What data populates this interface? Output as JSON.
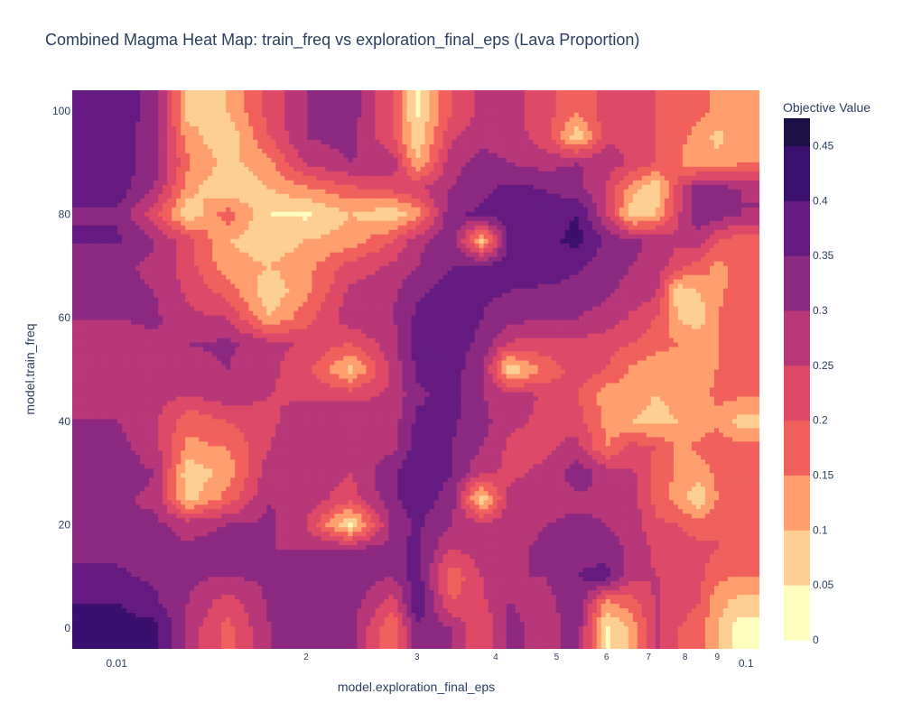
{
  "chart_data": {
    "type": "heatmap",
    "subtype": "contour",
    "title": "Combined Magma Heat Map: train_freq vs exploration_final_eps (Lava Proportion)",
    "xlabel": "model.exploration_final_eps",
    "ylabel": "model.train_freq",
    "x_scale": "log",
    "xlim": [
      0.0085,
      0.105
    ],
    "ylim": [
      -4,
      104
    ],
    "x_ticks": [
      {
        "value": 0.01,
        "label": "0.01",
        "major": true
      },
      {
        "value": 0.02,
        "label": "2",
        "major": false
      },
      {
        "value": 0.03,
        "label": "3",
        "major": false
      },
      {
        "value": 0.04,
        "label": "4",
        "major": false
      },
      {
        "value": 0.05,
        "label": "5",
        "major": false
      },
      {
        "value": 0.06,
        "label": "6",
        "major": false
      },
      {
        "value": 0.07,
        "label": "7",
        "major": false
      },
      {
        "value": 0.08,
        "label": "8",
        "major": false
      },
      {
        "value": 0.09,
        "label": "9",
        "major": false
      },
      {
        "value": 0.1,
        "label": "0.1",
        "major": true
      }
    ],
    "y_ticks": [
      {
        "value": 0,
        "label": "0"
      },
      {
        "value": 20,
        "label": "20"
      },
      {
        "value": 40,
        "label": "40"
      },
      {
        "value": 60,
        "label": "60"
      },
      {
        "value": 80,
        "label": "80"
      },
      {
        "value": 100,
        "label": "100"
      }
    ],
    "colorbar": {
      "title": "Objective Value",
      "colorscale": "Magma (reversed)",
      "range": [
        0,
        0.475
      ],
      "levels": [
        0,
        0.05,
        0.1,
        0.15,
        0.2,
        0.25,
        0.3,
        0.35,
        0.4,
        0.45
      ],
      "tick_labels": [
        "0",
        "0.05",
        "0.1",
        "0.15",
        "0.2",
        "0.25",
        "0.3",
        "0.35",
        "0.4",
        "0.45"
      ],
      "band_colors": [
        "#fcfdbf",
        "#fecf92",
        "#fe9f6d",
        "#f1605d",
        "#de4968",
        "#b73779",
        "#8c2981",
        "#641a80",
        "#3b0f70",
        "#1c1044",
        "#000004"
      ]
    },
    "z_grid": {
      "x": [
        0.01,
        0.0115,
        0.013,
        0.015,
        0.0175,
        0.02,
        0.0235,
        0.0275,
        0.03,
        0.034,
        0.038,
        0.042,
        0.048,
        0.054,
        0.06,
        0.066,
        0.072,
        0.078,
        0.084,
        0.09,
        0.098
      ],
      "y": [
        0,
        5,
        10,
        15,
        20,
        25,
        30,
        35,
        40,
        45,
        50,
        55,
        60,
        65,
        70,
        75,
        80,
        85,
        90,
        95,
        100
      ],
      "z": [
        [
          0.42,
          0.42,
          0.28,
          0.18,
          0.3,
          0.35,
          0.32,
          0.15,
          0.34,
          0.3,
          0.2,
          0.32,
          0.27,
          0.33,
          0.03,
          0.12,
          0.26,
          0.2,
          0.18,
          0.1,
          0.02
        ],
        [
          0.4,
          0.36,
          0.3,
          0.22,
          0.31,
          0.34,
          0.33,
          0.22,
          0.4,
          0.2,
          0.24,
          0.3,
          0.28,
          0.34,
          0.14,
          0.18,
          0.26,
          0.22,
          0.2,
          0.12,
          0.08
        ],
        [
          0.36,
          0.34,
          0.31,
          0.3,
          0.31,
          0.33,
          0.34,
          0.3,
          0.38,
          0.16,
          0.25,
          0.3,
          0.3,
          0.35,
          0.38,
          0.26,
          0.25,
          0.24,
          0.22,
          0.16,
          0.15
        ],
        [
          0.34,
          0.32,
          0.31,
          0.33,
          0.3,
          0.3,
          0.32,
          0.32,
          0.37,
          0.24,
          0.28,
          0.29,
          0.31,
          0.33,
          0.32,
          0.29,
          0.24,
          0.24,
          0.22,
          0.2,
          0.2
        ],
        [
          0.3,
          0.31,
          0.28,
          0.3,
          0.31,
          0.25,
          0.04,
          0.32,
          0.36,
          0.3,
          0.27,
          0.28,
          0.3,
          0.31,
          0.3,
          0.28,
          0.21,
          0.2,
          0.17,
          0.2,
          0.19
        ],
        [
          0.31,
          0.29,
          0.08,
          0.17,
          0.3,
          0.28,
          0.22,
          0.34,
          0.38,
          0.33,
          0.06,
          0.26,
          0.28,
          0.29,
          0.29,
          0.27,
          0.18,
          0.13,
          0.06,
          0.15,
          0.2
        ],
        [
          0.33,
          0.3,
          0.06,
          0.12,
          0.28,
          0.3,
          0.25,
          0.34,
          0.4,
          0.35,
          0.26,
          0.24,
          0.26,
          0.33,
          0.28,
          0.26,
          0.18,
          0.14,
          0.12,
          0.16,
          0.19
        ],
        [
          0.32,
          0.27,
          0.14,
          0.15,
          0.25,
          0.3,
          0.3,
          0.28,
          0.38,
          0.35,
          0.3,
          0.24,
          0.24,
          0.27,
          0.14,
          0.22,
          0.2,
          0.14,
          0.16,
          0.18,
          0.17
        ],
        [
          0.3,
          0.26,
          0.16,
          0.2,
          0.24,
          0.28,
          0.3,
          0.28,
          0.36,
          0.36,
          0.32,
          0.26,
          0.24,
          0.22,
          0.14,
          0.1,
          0.08,
          0.1,
          0.12,
          0.14,
          0.08
        ],
        [
          0.28,
          0.27,
          0.25,
          0.28,
          0.25,
          0.24,
          0.23,
          0.26,
          0.34,
          0.37,
          0.3,
          0.28,
          0.24,
          0.2,
          0.12,
          0.12,
          0.1,
          0.12,
          0.13,
          0.16,
          0.16
        ],
        [
          0.27,
          0.27,
          0.28,
          0.3,
          0.26,
          0.22,
          0.08,
          0.27,
          0.36,
          0.37,
          0.32,
          0.06,
          0.16,
          0.23,
          0.2,
          0.14,
          0.12,
          0.12,
          0.14,
          0.15,
          0.16
        ],
        [
          0.28,
          0.29,
          0.3,
          0.31,
          0.27,
          0.24,
          0.2,
          0.28,
          0.37,
          0.37,
          0.34,
          0.24,
          0.24,
          0.24,
          0.22,
          0.2,
          0.17,
          0.15,
          0.15,
          0.15,
          0.17
        ],
        [
          0.3,
          0.31,
          0.26,
          0.25,
          0.1,
          0.18,
          0.28,
          0.3,
          0.36,
          0.38,
          0.35,
          0.32,
          0.3,
          0.3,
          0.28,
          0.24,
          0.2,
          0.1,
          0.06,
          0.15,
          0.18
        ],
        [
          0.31,
          0.3,
          0.24,
          0.18,
          0.06,
          0.14,
          0.26,
          0.29,
          0.34,
          0.37,
          0.36,
          0.35,
          0.34,
          0.33,
          0.31,
          0.28,
          0.26,
          0.06,
          0.1,
          0.14,
          0.17
        ],
        [
          0.31,
          0.29,
          0.22,
          0.12,
          0.1,
          0.13,
          0.22,
          0.26,
          0.3,
          0.35,
          0.36,
          0.37,
          0.38,
          0.36,
          0.32,
          0.3,
          0.28,
          0.22,
          0.18,
          0.14,
          0.16
        ],
        [
          0.36,
          0.3,
          0.22,
          0.1,
          0.07,
          0.1,
          0.12,
          0.2,
          0.28,
          0.34,
          0.08,
          0.36,
          0.38,
          0.42,
          0.34,
          0.31,
          0.29,
          0.26,
          0.28,
          0.2,
          0.17
        ],
        [
          0.34,
          0.22,
          0.06,
          0.18,
          0.05,
          0.04,
          0.1,
          0.06,
          0.12,
          0.34,
          0.36,
          0.38,
          0.37,
          0.4,
          0.26,
          0.06,
          0.1,
          0.24,
          0.34,
          0.33,
          0.3
        ],
        [
          0.38,
          0.3,
          0.12,
          0.05,
          0.1,
          0.14,
          0.19,
          0.22,
          0.24,
          0.3,
          0.34,
          0.36,
          0.35,
          0.32,
          0.24,
          0.12,
          0.06,
          0.22,
          0.34,
          0.32,
          0.3
        ],
        [
          0.38,
          0.32,
          0.16,
          0.08,
          0.14,
          0.26,
          0.3,
          0.28,
          0.1,
          0.28,
          0.32,
          0.3,
          0.28,
          0.3,
          0.28,
          0.24,
          0.2,
          0.16,
          0.1,
          0.12,
          0.14
        ],
        [
          0.38,
          0.32,
          0.12,
          0.06,
          0.2,
          0.3,
          0.32,
          0.2,
          0.06,
          0.24,
          0.28,
          0.28,
          0.22,
          0.06,
          0.24,
          0.24,
          0.2,
          0.16,
          0.14,
          0.08,
          0.14
        ],
        [
          0.38,
          0.33,
          0.08,
          0.1,
          0.22,
          0.3,
          0.33,
          0.2,
          0.04,
          0.2,
          0.26,
          0.27,
          0.22,
          0.16,
          0.22,
          0.21,
          0.2,
          0.16,
          0.16,
          0.14,
          0.14
        ]
      ]
    }
  }
}
